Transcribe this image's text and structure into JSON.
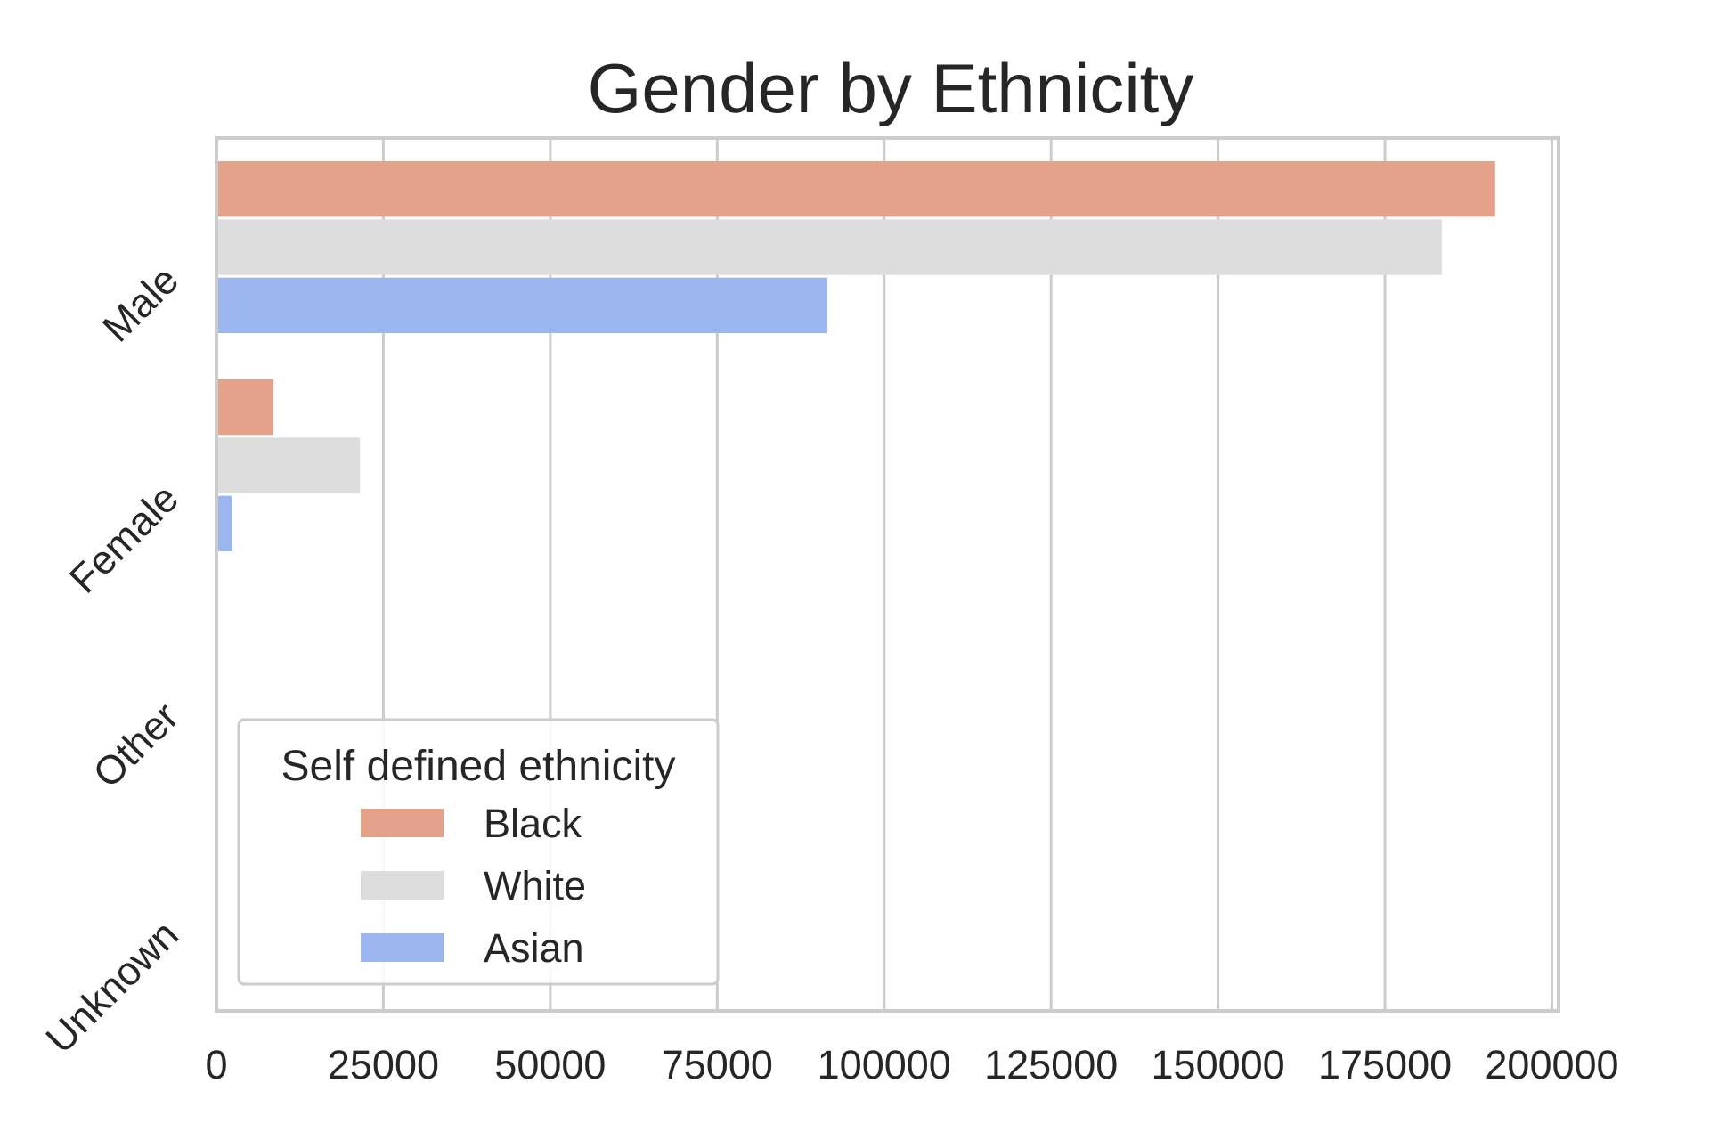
{
  "chart_data": {
    "type": "bar",
    "orientation": "horizontal",
    "title": "Gender by Ethnicity",
    "xlabel": "",
    "ylabel": "",
    "categories": [
      "Male",
      "Female",
      "Other",
      "Unknown"
    ],
    "series": [
      {
        "name": "Black",
        "color": "#e5a28a",
        "values": [
          191500,
          8500,
          0,
          0
        ]
      },
      {
        "name": "White",
        "color": "#dddddd",
        "values": [
          183500,
          21500,
          0,
          0
        ]
      },
      {
        "name": "Asian",
        "color": "#9cb7f0",
        "values": [
          91500,
          2300,
          0,
          0
        ]
      }
    ],
    "xlim": [
      0,
      201000
    ],
    "xticks": [
      0,
      25000,
      50000,
      75000,
      100000,
      125000,
      150000,
      175000,
      200000
    ],
    "grid": "vertical",
    "legend": {
      "title": "Self defined ethnicity",
      "placement": "lower-left"
    }
  }
}
